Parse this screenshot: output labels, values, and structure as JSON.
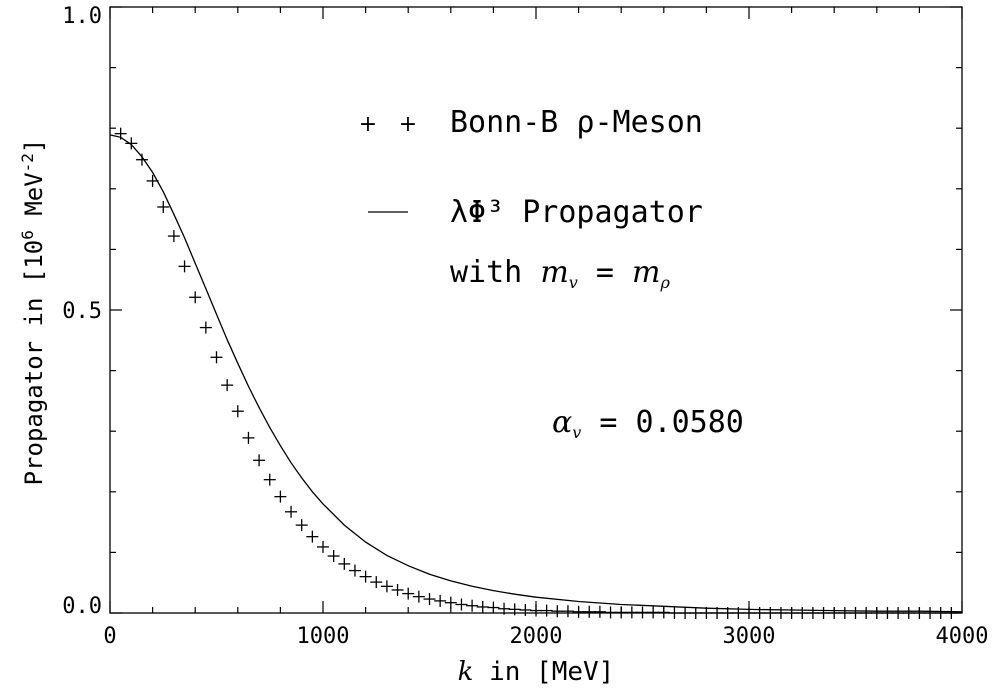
{
  "chart_data": {
    "type": "scatter",
    "xlabel_var": "k",
    "xlabel_rest": " in [MeV]",
    "ylabel_main": "Propagator in [10",
    "ylabel_exp": "6",
    "ylabel_unit": " MeV",
    "ylabel_exp2": "-2",
    "ylabel_close": "]",
    "xlim": [
      0,
      4000
    ],
    "ylim": [
      0,
      1.0
    ],
    "xticks": [
      0,
      1000,
      2000,
      3000,
      4000
    ],
    "xtick_labels": [
      "0",
      "1000",
      "2000",
      "3000",
      "4000"
    ],
    "yticks": [
      0.0,
      0.5,
      1.0
    ],
    "ytick_labels": [
      "0.0",
      "0.5",
      "1.0"
    ],
    "grid": false,
    "series": [
      {
        "name": "Bonn-B ρ-Meson",
        "style": "plus-markers",
        "x": [
          50,
          100,
          150,
          200,
          250,
          300,
          350,
          400,
          450,
          500,
          550,
          600,
          650,
          700,
          750,
          800,
          850,
          900,
          950,
          1000,
          1050,
          1100,
          1150,
          1200,
          1250,
          1300,
          1350,
          1400,
          1450,
          1500,
          1550,
          1600,
          1650,
          1700,
          1750,
          1800,
          1850,
          1900,
          1950,
          2000,
          2050,
          2100,
          2150,
          2200,
          2250,
          2300,
          2350,
          2400,
          2450,
          2500,
          2550,
          2600,
          2650,
          2700,
          2750,
          2800,
          2850,
          2900,
          2950,
          3000,
          3050,
          3100,
          3150,
          3200,
          3250,
          3300,
          3350,
          3400,
          3450,
          3500,
          3550,
          3600,
          3650,
          3700,
          3750,
          3800,
          3850,
          3900,
          3950
        ],
        "y": [
          0.791,
          0.775,
          0.748,
          0.713,
          0.67,
          0.622,
          0.572,
          0.521,
          0.471,
          0.422,
          0.376,
          0.333,
          0.289,
          0.252,
          0.22,
          0.192,
          0.167,
          0.145,
          0.126,
          0.109,
          0.094,
          0.081,
          0.07,
          0.06,
          0.051,
          0.044,
          0.038,
          0.032,
          0.027,
          0.023,
          0.02,
          0.017,
          0.014,
          0.012,
          0.01,
          0.009,
          0.007,
          0.006,
          0.005,
          0.004,
          0.004,
          0.003,
          0.003,
          0.002,
          0.002,
          0.002,
          0.001,
          0.001,
          0.001,
          0.001,
          0.001,
          0.001,
          0.0,
          0.0,
          0.0,
          0.0,
          0.0,
          0.0,
          0.0,
          0.0,
          0.0,
          0.0,
          0.0,
          0.0,
          0.0,
          0.0,
          0.0,
          0.0,
          0.0,
          0.0,
          0.0,
          0.0,
          0.0,
          0.0,
          0.0,
          0.0,
          0.0,
          0.0,
          0.0
        ]
      },
      {
        "name": "λΦ³ Propagator with m_v = m_ρ",
        "style": "line",
        "x": [
          0,
          50,
          100,
          150,
          200,
          250,
          300,
          350,
          400,
          450,
          500,
          550,
          600,
          650,
          700,
          750,
          800,
          850,
          900,
          950,
          1000,
          1100,
          1200,
          1300,
          1400,
          1500,
          1600,
          1700,
          1800,
          1900,
          2000,
          2200,
          2400,
          2600,
          2800,
          3000,
          3200,
          3400,
          3600,
          3800,
          4000
        ],
        "y": [
          0.789,
          0.785,
          0.773,
          0.753,
          0.727,
          0.695,
          0.658,
          0.619,
          0.577,
          0.535,
          0.493,
          0.451,
          0.412,
          0.374,
          0.339,
          0.306,
          0.276,
          0.248,
          0.223,
          0.2,
          0.18,
          0.145,
          0.117,
          0.095,
          0.078,
          0.064,
          0.053,
          0.044,
          0.037,
          0.031,
          0.026,
          0.019,
          0.014,
          0.011,
          0.008,
          0.006,
          0.005,
          0.004,
          0.003,
          0.003,
          0.002
        ]
      }
    ],
    "legend": {
      "marker_label": "Bonn-B ρ-Meson",
      "line_label_1": "λΦ³ Propagator",
      "line_label_2a": "with ",
      "line_label_2b": "m",
      "line_label_2c": "v",
      "line_label_2d": " = ",
      "line_label_2e": "m",
      "line_label_2f": "ρ"
    },
    "annotation": {
      "symbol": "α",
      "sub": "v",
      "rest": " = 0.0580"
    }
  }
}
